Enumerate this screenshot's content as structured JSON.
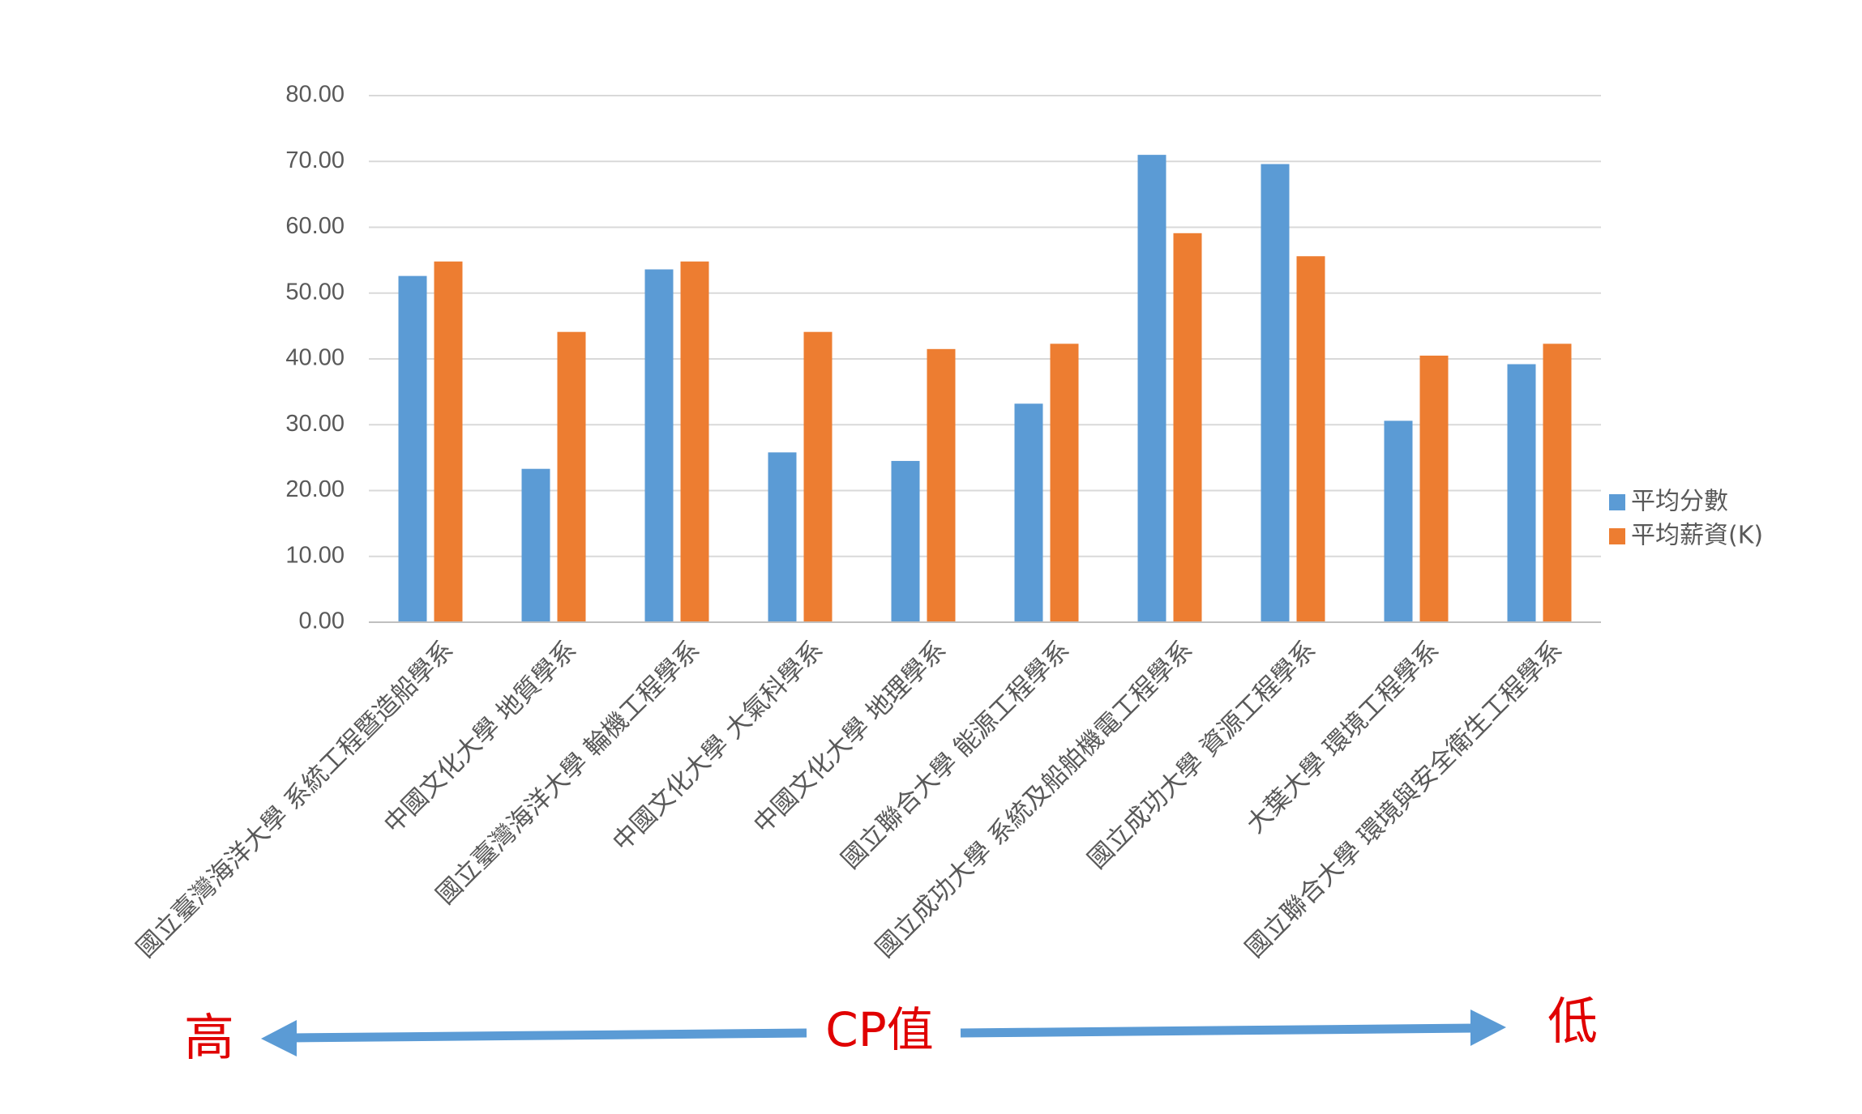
{
  "chart_data": {
    "type": "bar",
    "categories": [
      "國立臺灣海洋大學 系統工程暨造船學系",
      "中國文化大學 地質學系",
      "國立臺灣海洋大學 輪機工程學系",
      "中國文化大學 大氣科學系",
      "中國文化大學 地理學系",
      "國立聯合大學 能源工程學系",
      "國立成功大學 系統及船舶機電工程學系",
      "國立成功大學 資源工程學系",
      "大葉大學 環境工程學系",
      "國立聯合大學 環境與安全衛生工程學系"
    ],
    "series": [
      {
        "name": "平均分數",
        "color": "#5b9bd5",
        "values": [
          52.6,
          23.3,
          53.6,
          25.8,
          24.5,
          33.2,
          71.0,
          69.6,
          30.6,
          39.2
        ]
      },
      {
        "name": "平均薪資(K)",
        "color": "#ed7d31",
        "values": [
          54.8,
          44.1,
          54.8,
          44.1,
          41.5,
          42.3,
          59.1,
          55.6,
          40.5,
          42.3
        ]
      }
    ],
    "ylim": [
      0,
      80
    ],
    "yticks": [
      "0.00",
      "10.00",
      "20.00",
      "30.00",
      "40.00",
      "50.00",
      "60.00",
      "70.00",
      "80.00"
    ],
    "grid": true,
    "legend": "right",
    "gridColor": "#d9d9d9",
    "axisColor": "#bfbfbf"
  },
  "annotation": {
    "high_label": "高",
    "center_label": "CP值",
    "low_label": "低",
    "color": "#e00000",
    "arrow_color": "#5b9bd5"
  }
}
